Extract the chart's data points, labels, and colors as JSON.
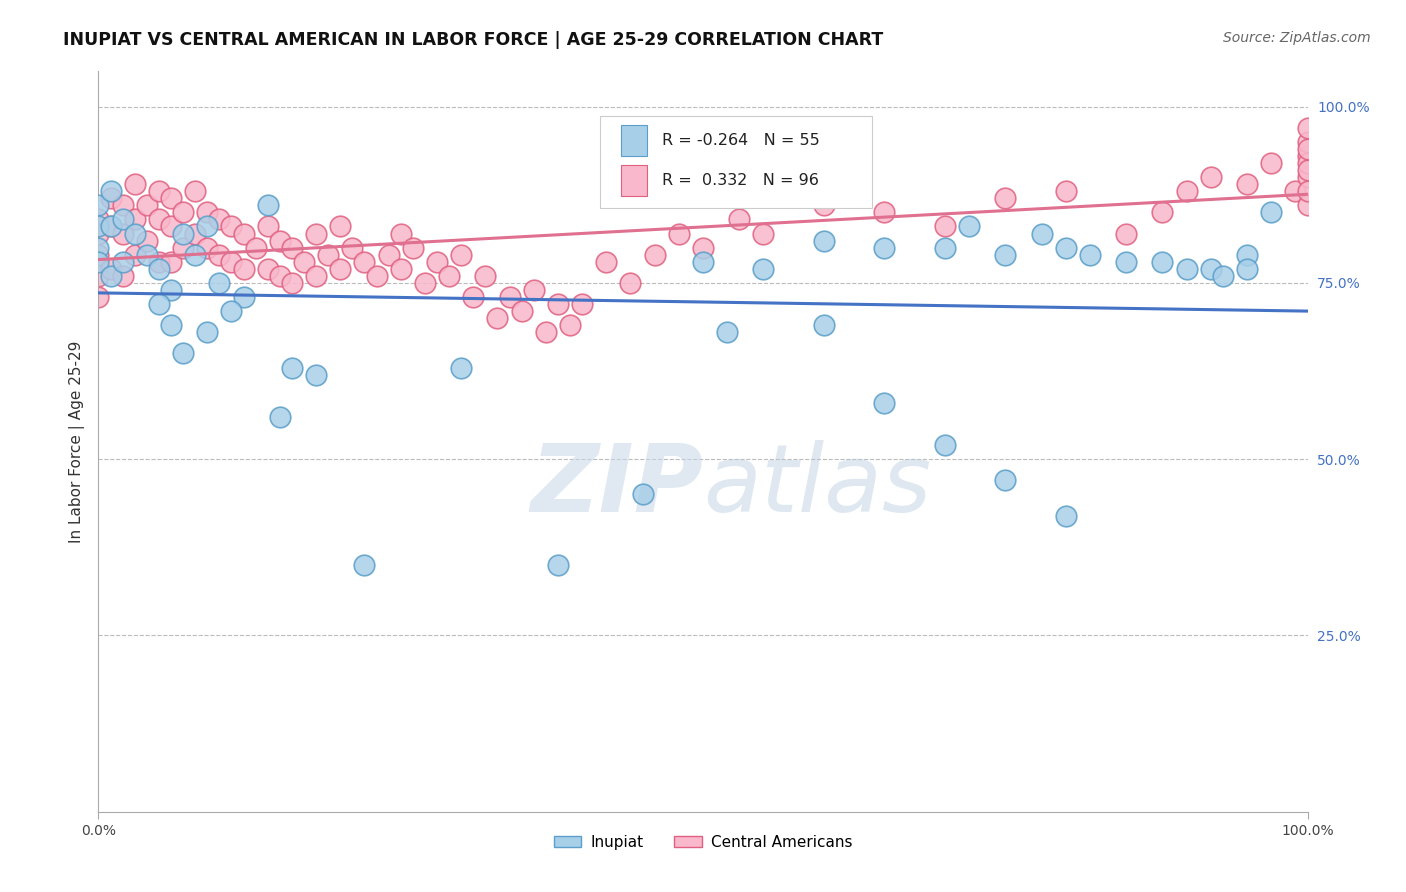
{
  "title": "INUPIAT VS CENTRAL AMERICAN IN LABOR FORCE | AGE 25-29 CORRELATION CHART",
  "source": "Source: ZipAtlas.com",
  "ylabel": "In Labor Force | Age 25-29",
  "xlim": [
    0.0,
    1.0
  ],
  "ylim": [
    0.0,
    1.05
  ],
  "y_tick_positions_right": [
    0.25,
    0.5,
    0.75,
    1.0
  ],
  "y_tick_labels_right": [
    "25.0%",
    "50.0%",
    "75.0%",
    "100.0%"
  ],
  "legend_inupiat_r": "-0.264",
  "legend_inupiat_n": "55",
  "legend_central_r": "0.332",
  "legend_central_n": "96",
  "inupiat_color": "#a8cfe8",
  "inupiat_edge_color": "#5a9ec9",
  "central_color": "#f9b8cb",
  "central_edge_color": "#e06080",
  "inupiat_line_color": "#4472c4",
  "central_line_color": "#e07090",
  "right_tick_color": "#4472c4",
  "background_color": "#ffffff",
  "grid_color": "#bbbbbb",
  "inupiat_x": [
    0.0,
    0.0,
    0.0,
    0.0,
    0.01,
    0.01,
    0.01,
    0.02,
    0.02,
    0.03,
    0.04,
    0.05,
    0.06,
    0.07,
    0.08,
    0.09,
    0.1,
    0.12,
    0.14,
    0.16,
    0.05,
    0.06,
    0.07,
    0.09,
    0.11,
    0.15,
    0.18,
    0.22,
    0.3,
    0.38,
    0.45,
    0.52,
    0.6,
    0.65,
    0.7,
    0.72,
    0.75,
    0.78,
    0.8,
    0.82,
    0.85,
    0.88,
    0.9,
    0.92,
    0.93,
    0.95,
    0.95,
    0.97,
    0.5,
    0.55,
    0.6,
    0.65,
    0.7,
    0.75,
    0.8
  ],
  "inupiat_y": [
    0.86,
    0.83,
    0.8,
    0.78,
    0.88,
    0.83,
    0.76,
    0.84,
    0.78,
    0.82,
    0.79,
    0.77,
    0.74,
    0.82,
    0.79,
    0.83,
    0.75,
    0.73,
    0.86,
    0.63,
    0.72,
    0.69,
    0.65,
    0.68,
    0.71,
    0.56,
    0.62,
    0.35,
    0.63,
    0.35,
    0.45,
    0.68,
    0.81,
    0.8,
    0.8,
    0.83,
    0.79,
    0.82,
    0.8,
    0.79,
    0.78,
    0.78,
    0.77,
    0.77,
    0.76,
    0.79,
    0.77,
    0.85,
    0.78,
    0.77,
    0.69,
    0.58,
    0.52,
    0.47,
    0.42
  ],
  "central_x": [
    0.0,
    0.0,
    0.0,
    0.0,
    0.0,
    0.01,
    0.01,
    0.01,
    0.02,
    0.02,
    0.02,
    0.03,
    0.03,
    0.03,
    0.04,
    0.04,
    0.05,
    0.05,
    0.05,
    0.06,
    0.06,
    0.06,
    0.07,
    0.07,
    0.08,
    0.08,
    0.09,
    0.09,
    0.1,
    0.1,
    0.11,
    0.11,
    0.12,
    0.12,
    0.13,
    0.14,
    0.14,
    0.15,
    0.15,
    0.16,
    0.16,
    0.17,
    0.18,
    0.18,
    0.19,
    0.2,
    0.2,
    0.21,
    0.22,
    0.23,
    0.24,
    0.25,
    0.25,
    0.26,
    0.27,
    0.28,
    0.29,
    0.3,
    0.31,
    0.32,
    0.33,
    0.34,
    0.35,
    0.36,
    0.37,
    0.38,
    0.39,
    0.4,
    0.42,
    0.44,
    0.46,
    0.48,
    0.5,
    0.53,
    0.55,
    0.6,
    0.65,
    0.7,
    0.75,
    0.8,
    0.85,
    0.88,
    0.9,
    0.92,
    0.95,
    0.97,
    0.99,
    1.0,
    1.0,
    1.0,
    1.0,
    1.0,
    1.0,
    1.0,
    1.0,
    1.0
  ],
  "central_y": [
    0.84,
    0.82,
    0.79,
    0.76,
    0.73,
    0.87,
    0.83,
    0.77,
    0.86,
    0.82,
    0.76,
    0.89,
    0.84,
    0.79,
    0.86,
    0.81,
    0.88,
    0.84,
    0.78,
    0.87,
    0.83,
    0.78,
    0.85,
    0.8,
    0.88,
    0.82,
    0.85,
    0.8,
    0.84,
    0.79,
    0.83,
    0.78,
    0.82,
    0.77,
    0.8,
    0.83,
    0.77,
    0.81,
    0.76,
    0.8,
    0.75,
    0.78,
    0.82,
    0.76,
    0.79,
    0.83,
    0.77,
    0.8,
    0.78,
    0.76,
    0.79,
    0.82,
    0.77,
    0.8,
    0.75,
    0.78,
    0.76,
    0.79,
    0.73,
    0.76,
    0.7,
    0.73,
    0.71,
    0.74,
    0.68,
    0.72,
    0.69,
    0.72,
    0.78,
    0.75,
    0.79,
    0.82,
    0.8,
    0.84,
    0.82,
    0.86,
    0.85,
    0.83,
    0.87,
    0.88,
    0.82,
    0.85,
    0.88,
    0.9,
    0.89,
    0.92,
    0.88,
    0.93,
    0.9,
    0.86,
    0.92,
    0.88,
    0.95,
    0.91,
    0.94,
    0.97
  ]
}
